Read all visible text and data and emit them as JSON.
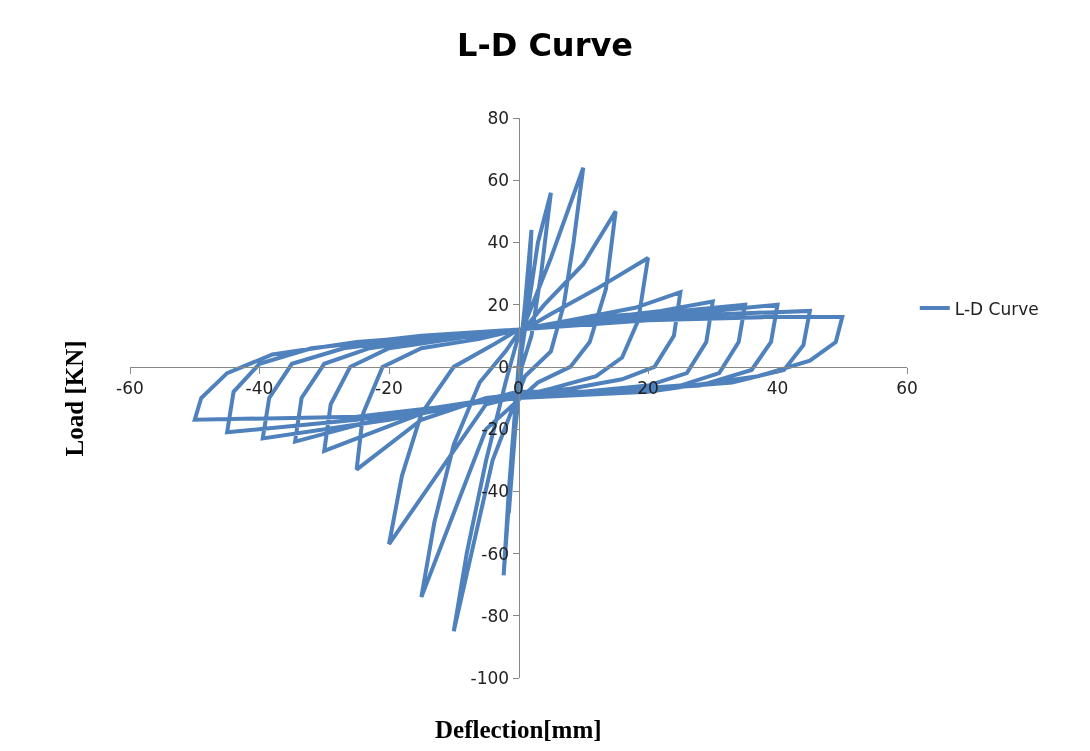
{
  "chart_data": {
    "type": "line",
    "title": "L-D Curve",
    "xlabel": "Deflection[mm]",
    "ylabel": "Load [KN]",
    "xlim": [
      -60,
      60
    ],
    "xticks": [
      -60,
      -40,
      -20,
      0,
      20,
      40,
      60
    ],
    "ylim": [
      -100,
      80
    ],
    "yticks": [
      -100,
      -80,
      -60,
      -40,
      -20,
      0,
      20,
      40,
      60,
      80
    ],
    "legend": "right",
    "marker": "none",
    "line_style": "solid",
    "series": [
      {
        "name": "L-D Curve",
        "color": "#4f81bd",
        "x": [
          0,
          1,
          2,
          1.5,
          0.5,
          -0.5,
          -1.5,
          -0.5,
          0.5,
          3,
          5,
          3.5,
          2,
          0.5,
          -1,
          -2.3,
          -1.5,
          0,
          1,
          5,
          10,
          8.5,
          7,
          5,
          1,
          -4,
          -10,
          -8,
          -5,
          -2,
          0,
          4,
          10,
          15,
          13.5,
          11,
          8,
          3,
          -5,
          -15,
          -13,
          -10,
          -6,
          -2,
          0,
          5,
          12,
          20,
          18.5,
          16,
          12,
          5,
          -5,
          -20,
          -18,
          -15,
          -10,
          -4,
          0,
          8,
          18,
          25,
          24,
          21,
          16,
          8,
          -5,
          -15,
          -25,
          -24,
          -21,
          -15,
          -6,
          0,
          10,
          22,
          30,
          29,
          26,
          20,
          10,
          0,
          -15,
          -30,
          -29,
          -26,
          -20,
          -10,
          0,
          12,
          25,
          35,
          34,
          31,
          25,
          12,
          0,
          -20,
          -34.5,
          -33.5,
          -30,
          -23,
          -10,
          0,
          15,
          30,
          40,
          39,
          36,
          28,
          12,
          0,
          -20,
          -39.5,
          -38.5,
          -35,
          -27,
          -12,
          0,
          15,
          32,
          45,
          44,
          41,
          33,
          15,
          0,
          -25,
          -45,
          -44,
          -40,
          -32,
          -15,
          0,
          20,
          38,
          50,
          49,
          45,
          37,
          20,
          0,
          -25,
          -50,
          -49,
          -45,
          -38,
          -25,
          0
        ],
        "values": [
          0,
          20,
          44,
          20,
          5,
          -15,
          -47,
          -20,
          5,
          40,
          56,
          30,
          10,
          0,
          -30,
          -67,
          -40,
          0,
          14,
          35,
          64,
          40,
          20,
          5,
          -3,
          -30,
          -85,
          -60,
          -30,
          -5,
          10,
          20,
          33,
          50,
          25,
          8,
          0,
          -5,
          -20,
          -74,
          -50,
          -25,
          -5,
          5,
          11,
          17,
          25,
          35,
          15,
          3,
          -3,
          -7,
          -12,
          -57,
          -35,
          -15,
          0,
          7,
          12,
          15,
          19,
          24,
          10,
          0,
          -4,
          -7,
          -10,
          -17,
          -33,
          -15,
          0,
          6,
          9,
          12,
          15,
          18,
          21,
          8,
          -2,
          -6,
          -8,
          -8,
          -15,
          -27,
          -12,
          0,
          6,
          9,
          12,
          16,
          18,
          20,
          8,
          -2,
          -6,
          -8,
          -9,
          -16,
          -24,
          -10,
          1,
          6,
          10,
          12,
          16,
          18,
          20,
          8,
          -1,
          -6,
          -8,
          -9,
          -17,
          -23,
          -10,
          1,
          6,
          10,
          12,
          15,
          17,
          18,
          7,
          -1,
          -5,
          -8,
          -9,
          -17,
          -21,
          -8,
          1,
          6,
          10,
          12,
          15,
          16,
          16,
          8,
          2,
          -3,
          -8,
          -10,
          -16,
          -17,
          -10,
          -2,
          4,
          8,
          12
        ]
      }
    ]
  }
}
